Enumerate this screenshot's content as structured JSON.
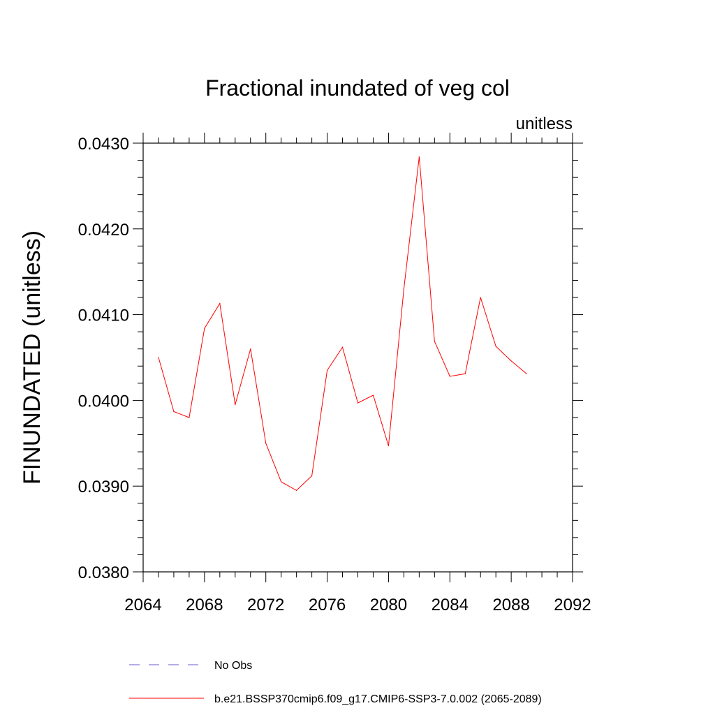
{
  "chart_data": {
    "type": "line",
    "title": "Fractional inundated of veg col",
    "units_label": "unitless",
    "ylabel": "FINUNDATED  (unitless)",
    "xlabel": "",
    "xlim": [
      2064,
      2092
    ],
    "ylim": [
      0.038,
      0.043
    ],
    "x_ticks": [
      2064,
      2068,
      2072,
      2076,
      2080,
      2084,
      2088,
      2092
    ],
    "x_tick_labels": [
      "2064",
      "2068",
      "2072",
      "2076",
      "2080",
      "2084",
      "2088",
      "2092"
    ],
    "y_ticks": [
      0.038,
      0.039,
      0.04,
      0.041,
      0.042,
      0.043
    ],
    "y_tick_labels": [
      "0.0380",
      "0.0390",
      "0.0400",
      "0.0410",
      "0.0420",
      "0.0430"
    ],
    "grid": false,
    "legend_position": "bottom",
    "series": [
      {
        "name": "b.e21.BSSP370cmip6.f09_g17.CMIP6-SSP3-7.0.002 (2065-2089)",
        "color": "#ff0000",
        "style": "solid",
        "x": [
          2065,
          2066,
          2067,
          2068,
          2069,
          2070,
          2071,
          2072,
          2073,
          2074,
          2075,
          2076,
          2077,
          2078,
          2079,
          2080,
          2081,
          2082,
          2083,
          2084,
          2085,
          2086,
          2087,
          2088,
          2089
        ],
        "y": [
          0.0405,
          0.03987,
          0.0398,
          0.04084,
          0.04113,
          0.03995,
          0.0406,
          0.0395,
          0.03905,
          0.03895,
          0.03912,
          0.04035,
          0.04062,
          0.03997,
          0.04006,
          0.03947,
          0.0413,
          0.04284,
          0.04069,
          0.04028,
          0.04031,
          0.0412,
          0.04063,
          0.04046,
          0.04031
        ]
      }
    ],
    "legend": [
      {
        "label": "No Obs",
        "color": "#6a5acd",
        "style": "dashed"
      },
      {
        "label": "b.e21.BSSP370cmip6.f09_g17.CMIP6-SSP3-7.0.002 (2065-2089)",
        "color": "#ff0000",
        "style": "solid"
      }
    ]
  }
}
